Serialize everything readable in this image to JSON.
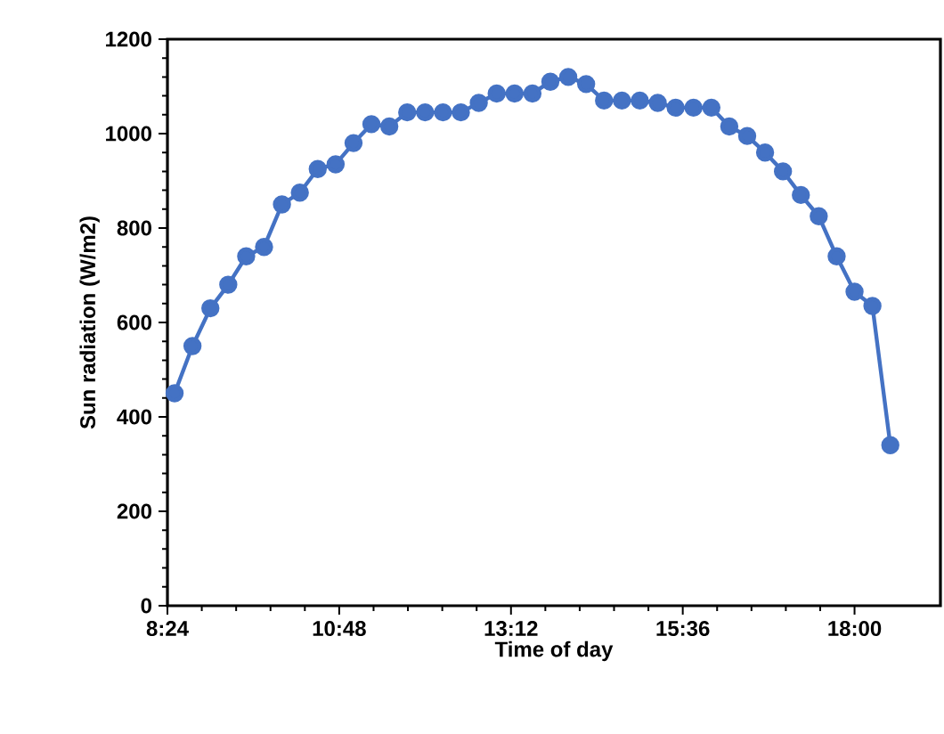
{
  "chart_data": {
    "type": "line",
    "xlabel": "Time of day",
    "ylabel": "Sun radiation (W/m2)",
    "x": [
      8.5,
      8.75,
      9,
      9.25,
      9.5,
      9.75,
      10,
      10.25,
      10.5,
      10.75,
      11,
      11.25,
      11.5,
      11.75,
      12,
      12.25,
      12.5,
      12.75,
      13,
      13.25,
      13.5,
      13.75,
      14,
      14.25,
      14.5,
      14.75,
      15,
      15.25,
      15.5,
      15.75,
      16,
      16.25,
      16.5,
      16.75,
      17,
      17.25,
      17.5,
      17.75,
      18,
      18.25,
      18.5
    ],
    "series": [
      {
        "color": "#4472c4",
        "values": [
          450,
          550,
          630,
          680,
          740,
          760,
          850,
          875,
          925,
          935,
          980,
          1020,
          1015,
          1045,
          1045,
          1045,
          1045,
          1065,
          1085,
          1085,
          1085,
          1110,
          1120,
          1105,
          1070,
          1070,
          1070,
          1065,
          1055,
          1055,
          1055,
          1015,
          995,
          960,
          920,
          870,
          825,
          740,
          665,
          635,
          340
        ]
      }
    ],
    "xlim": [
      8.4,
      19.2
    ],
    "ylim": [
      0,
      1200
    ],
    "xticks": [
      {
        "value": 8.4,
        "label": "8:24"
      },
      {
        "value": 10.8,
        "label": "10:48"
      },
      {
        "value": 13.2,
        "label": "13:12"
      },
      {
        "value": 15.6,
        "label": "15:36"
      },
      {
        "value": 18.0,
        "label": "18:00"
      }
    ],
    "yticks": [
      0,
      200,
      400,
      600,
      800,
      1000,
      1200
    ],
    "grid": false,
    "marker": "circle",
    "line_style": "solid"
  }
}
